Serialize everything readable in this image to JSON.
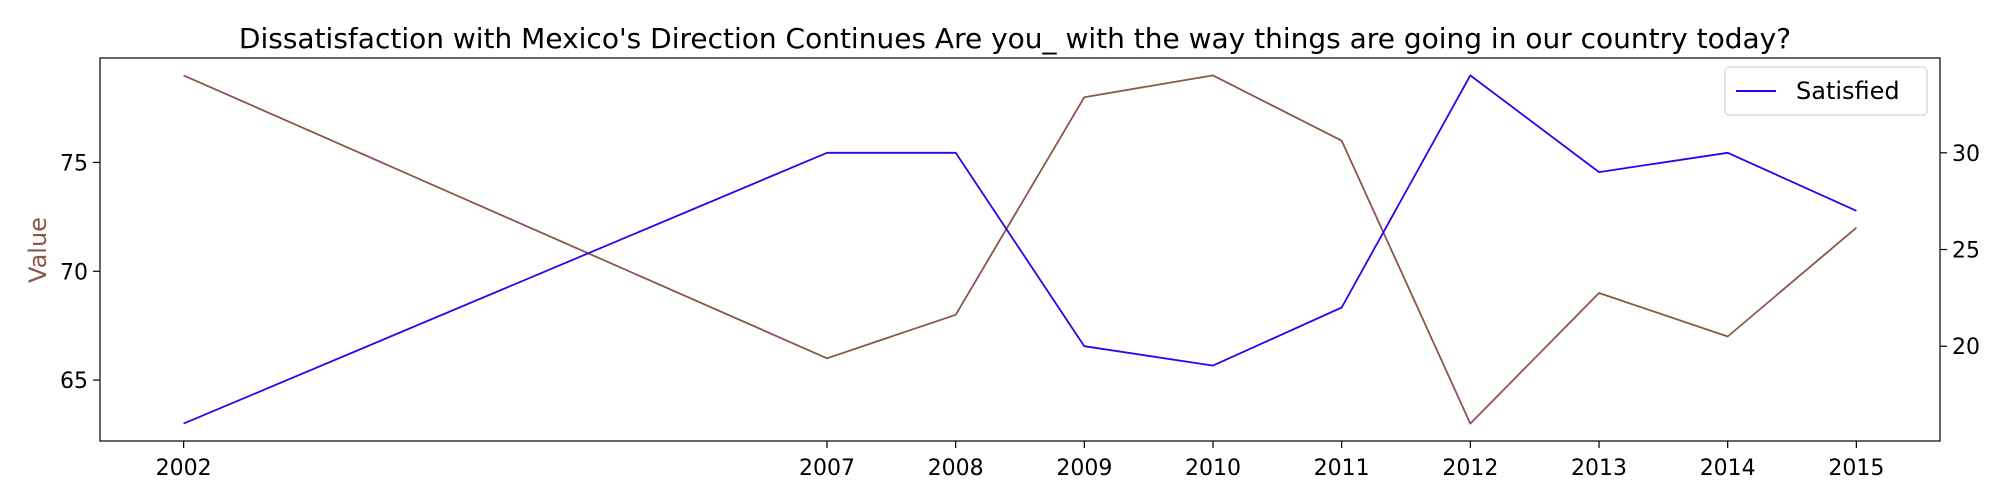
{
  "chart_data": {
    "type": "line",
    "title": "Dissatisfaction with Mexico's Direction Continues Are you_ with the way things are going in our country today?",
    "x": [
      2002,
      2007,
      2008,
      2009,
      2010,
      2011,
      2012,
      2013,
      2014,
      2015
    ],
    "xticks": [
      "2002",
      "2007",
      "2008",
      "2009",
      "2010",
      "2011",
      "2012",
      "2013",
      "2014",
      "2015"
    ],
    "xlim": [
      2001.35,
      2015.65
    ],
    "left_axis": {
      "label": "Value",
      "label_color": "#8c564b",
      "ylim": [
        62.2,
        79.8
      ],
      "ticks": [
        65,
        70,
        75
      ]
    },
    "right_axis": {
      "label": "",
      "ylim": [
        15.1,
        34.9
      ],
      "ticks": [
        20,
        25,
        30
      ]
    },
    "series": [
      {
        "name": "",
        "axis": "left",
        "color": "#8c564b",
        "values": [
          79,
          66,
          68,
          78,
          79,
          76,
          63,
          69,
          67,
          72
        ]
      },
      {
        "name": "Satisfied",
        "axis": "right",
        "color": "#3300ee",
        "values": [
          16,
          30,
          30,
          20,
          19,
          22,
          34,
          29,
          30,
          27
        ]
      }
    ],
    "legend": {
      "position": "top-right",
      "entries": [
        "Satisfied"
      ]
    },
    "grid": false
  }
}
